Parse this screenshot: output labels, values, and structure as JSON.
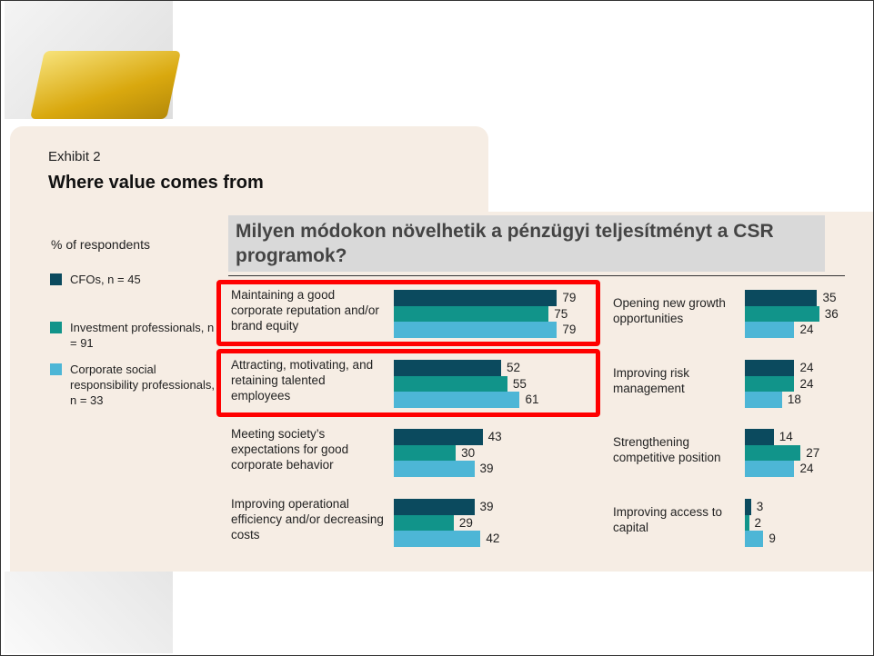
{
  "chart_data": {
    "type": "bar",
    "exhibit": "Exhibit 2",
    "title": "Where value comes from",
    "overlay_title": "Milyen módokon növelhetik a pénzügyi teljesítményt a CSR programok?",
    "subtitle": "% of respondents",
    "categories": [
      "Maintaining a good corporate reputation and/or brand equity",
      "Attracting, motivating, and retaining talented employees",
      "Meeting society’s expectations for good corporate behavior",
      "Improving operational efficiency and/or decreasing costs",
      "Opening new growth opportunities",
      "Improving risk management",
      "Strengthening competitive position",
      "Improving access to capital"
    ],
    "series": [
      {
        "name": "CFOs, n = 45",
        "color": "#0b4a5e",
        "values": [
          79,
          52,
          43,
          39,
          35,
          24,
          14,
          3
        ]
      },
      {
        "name": "Investment professionals, n = 91",
        "color": "#11948a",
        "values": [
          75,
          55,
          30,
          29,
          36,
          24,
          27,
          2
        ]
      },
      {
        "name": "Corporate social responsibility professionals, n = 33",
        "color": "#4db6d6",
        "values": [
          79,
          61,
          39,
          42,
          24,
          18,
          24,
          9
        ]
      }
    ]
  }
}
